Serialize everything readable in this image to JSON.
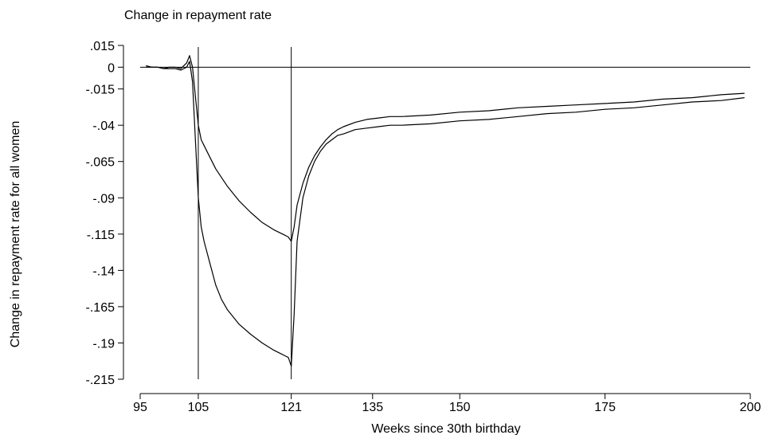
{
  "chart_data": {
    "type": "line",
    "title": "Change in repayment rate",
    "xlabel": "Weeks since 30th birthday",
    "ylabel": "Change in repayment rate for all women",
    "xlim": [
      95,
      200
    ],
    "ylim": [
      -0.215,
      0.015
    ],
    "x_ticks": [
      95,
      105,
      121,
      135,
      150,
      175,
      200
    ],
    "x_tick_labels": [
      "95",
      "105",
      "121",
      "135",
      "150",
      "175",
      "200"
    ],
    "y_ticks": [
      0.015,
      0,
      -0.015,
      -0.04,
      -0.065,
      -0.09,
      -0.115,
      -0.14,
      -0.165,
      -0.19,
      -0.215
    ],
    "y_tick_labels": [
      ".015",
      "0",
      "-.015",
      "-.04",
      "-.065",
      "-.09",
      "-.115",
      "-.14",
      "-.165",
      "-.19",
      "-.215"
    ],
    "reference_lines": {
      "horizontal": [
        0
      ],
      "vertical": [
        105,
        121
      ]
    },
    "grid": false,
    "legend": "none",
    "series": [
      {
        "x": [
          96,
          97,
          98,
          99,
          100,
          101,
          102,
          103,
          103.5,
          104,
          104.5,
          105,
          105.5,
          106,
          107,
          108,
          109,
          110,
          112,
          114,
          116,
          118,
          120,
          120.5,
          121,
          121.5,
          122,
          123,
          124,
          125,
          126,
          127,
          128,
          129,
          130,
          132,
          134,
          136,
          138,
          140,
          145,
          150,
          155,
          160,
          165,
          170,
          175,
          180,
          185,
          190,
          195,
          199
        ],
        "y": [
          0.001,
          0.0,
          0.0,
          -0.001,
          0.0,
          0.0,
          -0.001,
          0.003,
          0.008,
          0.0,
          -0.02,
          -0.04,
          -0.05,
          -0.054,
          -0.062,
          -0.07,
          -0.076,
          -0.082,
          -0.092,
          -0.1,
          -0.107,
          -0.112,
          -0.116,
          -0.117,
          -0.12,
          -0.11,
          -0.095,
          -0.08,
          -0.069,
          -0.061,
          -0.055,
          -0.05,
          -0.046,
          -0.043,
          -0.041,
          -0.038,
          -0.036,
          -0.035,
          -0.034,
          -0.034,
          -0.033,
          -0.031,
          -0.03,
          -0.028,
          -0.027,
          -0.026,
          -0.025,
          -0.024,
          -0.022,
          -0.021,
          -0.019,
          -0.018
        ]
      },
      {
        "x": [
          96,
          97,
          98,
          99,
          100,
          101,
          102,
          103,
          103.5,
          104,
          104.5,
          105,
          105.5,
          106,
          107,
          108,
          109,
          110,
          112,
          114,
          116,
          118,
          119,
          120,
          120.5,
          121,
          121.5,
          122,
          123,
          124,
          125,
          126,
          127,
          128,
          129,
          130,
          132,
          134,
          136,
          138,
          140,
          145,
          150,
          155,
          160,
          165,
          170,
          175,
          180,
          185,
          190,
          195,
          199
        ],
        "y": [
          0.0,
          0.0,
          0.0,
          -0.001,
          -0.001,
          -0.001,
          -0.002,
          0.0,
          0.004,
          -0.01,
          -0.05,
          -0.09,
          -0.11,
          -0.12,
          -0.135,
          -0.15,
          -0.16,
          -0.167,
          -0.177,
          -0.184,
          -0.19,
          -0.195,
          -0.197,
          -0.199,
          -0.2,
          -0.206,
          -0.17,
          -0.12,
          -0.09,
          -0.075,
          -0.065,
          -0.058,
          -0.053,
          -0.05,
          -0.047,
          -0.046,
          -0.043,
          -0.042,
          -0.041,
          -0.04,
          -0.04,
          -0.039,
          -0.037,
          -0.036,
          -0.034,
          -0.032,
          -0.031,
          -0.029,
          -0.028,
          -0.026,
          -0.024,
          -0.023,
          -0.021
        ]
      }
    ]
  }
}
